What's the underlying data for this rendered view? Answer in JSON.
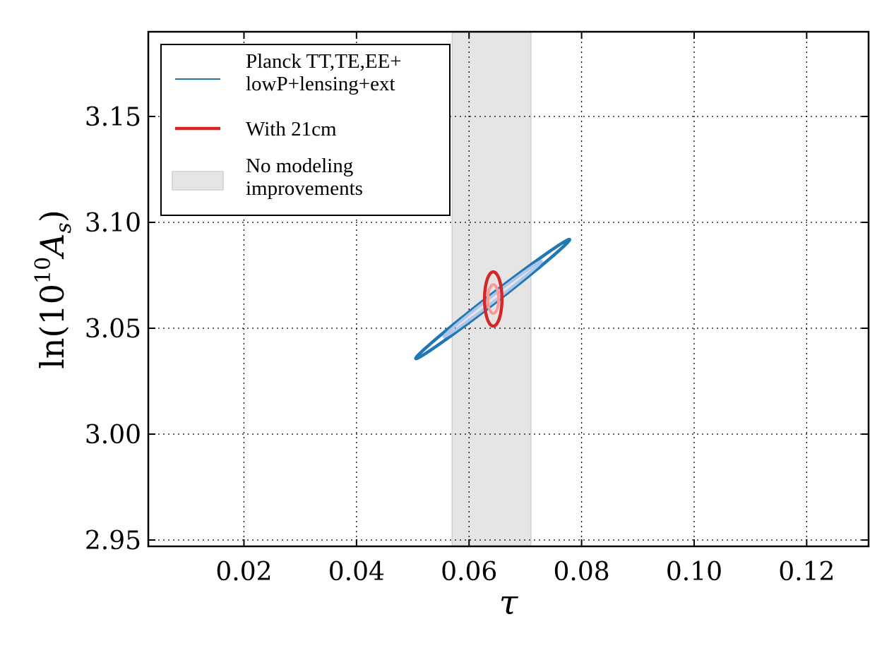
{
  "chart_data": {
    "type": "contour",
    "xlabel": "τ",
    "ylabel": {
      "prefix": "ln(10",
      "sup": "10",
      "var": "A",
      "sub": "s",
      "suffix": ")"
    },
    "xlim": [
      0.003,
      0.131
    ],
    "ylim": [
      2.947,
      3.19
    ],
    "xticks": [
      0.02,
      0.04,
      0.06,
      0.08,
      0.1,
      0.12
    ],
    "xtick_labels": [
      "0.02",
      "0.04",
      "0.06",
      "0.08",
      "0.10",
      "0.12"
    ],
    "yticks": [
      2.95,
      3.0,
      3.05,
      3.1,
      3.15
    ],
    "ytick_labels": [
      "2.95",
      "3.00",
      "3.05",
      "3.10",
      "3.15"
    ],
    "grid": true,
    "band": {
      "x0": 0.057,
      "x1": 0.071,
      "color": "#e5e5e5"
    },
    "series": [
      {
        "name": "Planck TT,TE,EE+ lowP+lensing+ext",
        "color": "#1f77b4",
        "light_color": "#aec7e8",
        "contours": [
          {
            "level": "95%",
            "center": [
              0.0642,
              3.0638
            ],
            "a": 0.0312,
            "b": 0.0026,
            "slope": 2.05,
            "width": 4.5
          },
          {
            "level": "68%",
            "center": [
              0.0642,
              3.0638
            ],
            "a": 0.0198,
            "b": 0.0016,
            "slope": 2.05,
            "width": 4
          }
        ]
      },
      {
        "name": "With 21cm",
        "color": "#d62728",
        "light_color": "#ff9896",
        "contours": [
          {
            "level": "95%",
            "center": [
              0.0643,
              3.0638
            ],
            "rx": 0.00155,
            "ry": 0.0128,
            "width": 4.5
          },
          {
            "level": "68%",
            "center": [
              0.0643,
              3.0638
            ],
            "rx": 0.00095,
            "ry": 0.0068,
            "width": 4
          }
        ]
      }
    ],
    "legend": {
      "placement": "upper-left",
      "entries": [
        {
          "lines": [
            "Planck TT,TE,EE+",
            "lowP+lensing+ext"
          ],
          "kind": "line-thin",
          "color": "#1f77b4"
        },
        {
          "lines": [
            "With 21cm"
          ],
          "kind": "line-thick",
          "color": "#d62728"
        },
        {
          "lines": [
            "No modeling",
            "improvements"
          ],
          "kind": "patch",
          "color": "#e5e5e5"
        }
      ]
    }
  }
}
